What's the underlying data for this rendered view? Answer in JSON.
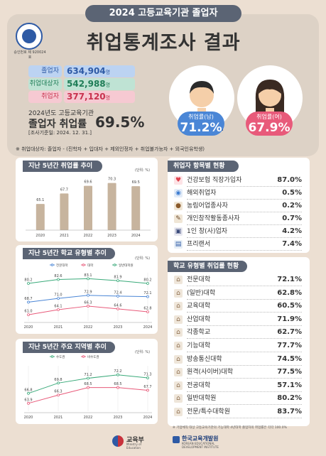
{
  "header": {
    "banner": "2024 고등교육기관 졸업자",
    "title": "취업통계조사 결과",
    "stat_no": "승인번호 제 920024 호"
  },
  "summary": {
    "graduates_label": "졸업자",
    "graduates_value": "634,904",
    "graduates_unit": "명",
    "target_label": "취업대상자",
    "target_value": "542,988",
    "target_unit": "명",
    "employed_label": "취업자",
    "employed_value": "377,120",
    "employed_unit": "명",
    "year_note": "2024년도 고등교육기관",
    "rate_label": "졸업자 취업률",
    "rate_value": "69.5%",
    "survey_date": "[조사기준일: 2024. 12. 31.]",
    "target_note": "※ 취업대상자: 졸업자 - (진학자 + 입대자 + 제외인정자 + 취업불가능자 + 외국인유학생)",
    "male_label": "취업률(남)",
    "male_value": "71.2%",
    "female_label": "취업률(여)",
    "female_value": "67.9%"
  },
  "colors": {
    "navy": "#5b6474",
    "blue": "#4a86d6",
    "pink": "#e85a7a",
    "green": "#3aaa7a",
    "bar": "#c7b49e",
    "pill_blue": "#bcd3f2",
    "pill_green": "#bfe3d4",
    "pill_pink": "#f6c9d2"
  },
  "panels": {
    "trend_title": "지난 5년간 취업률 추이",
    "school_title": "지난 5년간 학교 유형별 추이",
    "region_title": "지난 5년간 주요 지역별 추이",
    "unit": "(단위: %)",
    "sector_title": "취업자 항목별 현황",
    "type_title": "학교 유형별 취업률 현황",
    "footnote": "※ 기업체직 대상 고등교육기관의 기능대학 4년대학 졸업자의 취업률은 각각 100.0%"
  },
  "sectors": [
    {
      "name": "건강보험 직장가입자",
      "value": "87.0%",
      "icon": "heart-icon"
    },
    {
      "name": "해외취업자",
      "value": "0.5%",
      "icon": "globe-icon"
    },
    {
      "name": "농림어업종사자",
      "value": "0.2%",
      "icon": "farmer-icon"
    },
    {
      "name": "개인창작활동종사자",
      "value": "0.7%",
      "icon": "artist-icon"
    },
    {
      "name": "1인 창(사)업자",
      "value": "4.2%",
      "icon": "startup-icon"
    },
    {
      "name": "프리랜서",
      "value": "7.4%",
      "icon": "freelancer-icon"
    }
  ],
  "school_types": [
    {
      "name": "전문대학",
      "value": "72.1%"
    },
    {
      "name": "(일반)대학",
      "value": "62.8%"
    },
    {
      "name": "교육대학",
      "value": "60.5%"
    },
    {
      "name": "산업대학",
      "value": "71.9%"
    },
    {
      "name": "각종학교",
      "value": "62.7%"
    },
    {
      "name": "기능대학",
      "value": "77.7%"
    },
    {
      "name": "방송통신대학",
      "value": "74.5%"
    },
    {
      "name": "원격(사이버)대학",
      "value": "77.5%"
    },
    {
      "name": "전공대학",
      "value": "57.1%"
    },
    {
      "name": "일반대학원",
      "value": "80.2%"
    },
    {
      "name": "전문/특수대학원",
      "value": "83.7%"
    }
  ],
  "footer": {
    "moe_name": "교육부",
    "moe_sub": "Ministry of Education",
    "kedi_name": "한국교육개발원",
    "kedi_sub": "KOREAN EDUCATIONAL DEVELOPMENT INSTITUTE"
  },
  "chart_data": [
    {
      "type": "bar",
      "title": "지난 5년간 취업률 추이",
      "categories": [
        "2020",
        "2021",
        "2022",
        "2023",
        "2024"
      ],
      "values": [
        65.1,
        67.7,
        69.6,
        70.3,
        69.5
      ],
      "ylabel": "(단위: %)",
      "ylim": [
        60,
        72
      ]
    },
    {
      "type": "line",
      "title": "지난 5년간 학교 유형별 추이",
      "categories": [
        "2020",
        "2021",
        "2022",
        "2023",
        "2024"
      ],
      "series": [
        {
          "name": "전문대학",
          "color": "#4a86d6",
          "values": [
            68.7,
            71.0,
            72.9,
            72.4,
            72.1
          ]
        },
        {
          "name": "대학",
          "color": "#e85a7a",
          "values": [
            61.0,
            64.1,
            66.3,
            64.6,
            62.8
          ]
        },
        {
          "name": "일반대학원",
          "color": "#3aaa7a",
          "values": [
            80.2,
            82.6,
            83.1,
            81.9,
            80.2
          ]
        }
      ],
      "legend": "top",
      "ylim": [
        58,
        85
      ]
    },
    {
      "type": "line",
      "title": "지난 5년간 주요 지역별 추이",
      "categories": [
        "2020",
        "2021",
        "2022",
        "2023",
        "2024"
      ],
      "series": [
        {
          "name": "수도권",
          "color": "#3aaa7a",
          "values": [
            66.8,
            69.8,
            71.2,
            72.2,
            71.3
          ]
        },
        {
          "name": "비수도권",
          "color": "#e85a7a",
          "values": [
            63.9,
            66.3,
            68.5,
            68.5,
            67.7
          ]
        }
      ],
      "legend": "top",
      "ylim": [
        62,
        74
      ]
    }
  ]
}
